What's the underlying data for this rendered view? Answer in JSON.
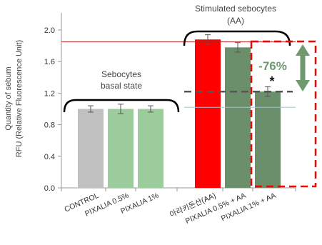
{
  "chart_data": {
    "type": "bar",
    "ylabel": "Quantity of sebum",
    "ylabel_unit": "RFU (Relative Fluorescence Unit)",
    "ylim": [
      0,
      2.2
    ],
    "yticks": [
      "0.0",
      "0.4",
      "0.8",
      "1.2",
      "1.6",
      "2.0"
    ],
    "categories": [
      "CONTROL",
      "PIXALIA 0.5%",
      "PIXALIA 1%",
      "아라키돈산(AA)",
      "PIXALIA 0.5% + AA",
      "PIXALIA 1% + AA"
    ],
    "values": [
      1.0,
      1.0,
      1.0,
      1.88,
      1.78,
      1.22
    ],
    "errors": [
      0.04,
      0.06,
      0.04,
      0.06,
      0.06,
      0.06
    ],
    "bar_colors": [
      "#c0c0c0",
      "#9ccc9c",
      "#9ccc9c",
      "#ff0000",
      "#6b8e6b",
      "#6b8e6b"
    ],
    "groups": [
      {
        "label_line1": "Sebocytes",
        "label_line2": "basal state"
      },
      {
        "label_line1": "Stimulated sebocytes",
        "label_line2": "(AA)"
      }
    ],
    "reference_lines": {
      "top": 1.85,
      "top_color": "#b22222",
      "basal": 1.02,
      "basal_color": "#a8c4cc",
      "dashed": 1.22,
      "dashed_color": "#555555"
    },
    "annotation": {
      "text": "-76%",
      "significance": "*",
      "arrow_color": "#6e9a6e",
      "box_color": "#ff0000"
    }
  }
}
